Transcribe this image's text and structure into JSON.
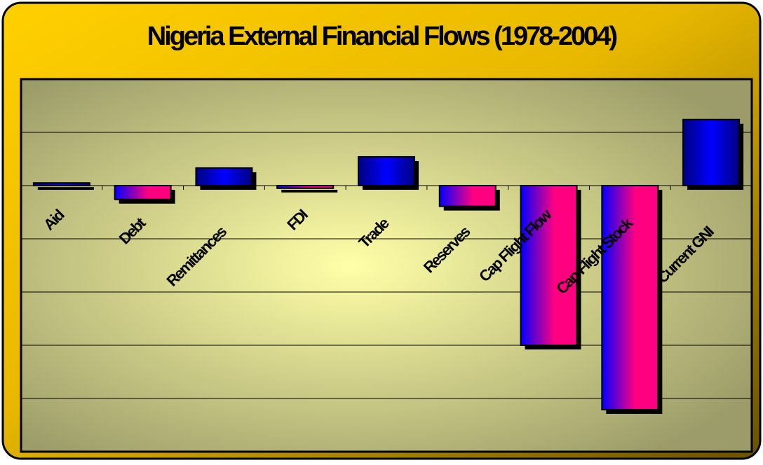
{
  "chart_data": {
    "type": "bar",
    "title": "Nigeria External Financial Flows (1978-2004)",
    "categories": [
      "Aid",
      "Debt",
      "Remittances",
      "FDI",
      "Trade",
      "Reserves",
      "Cap Flight Flow",
      "Cap Flight Stock",
      "Current GNI"
    ],
    "values": [
      0.05,
      -0.26,
      0.33,
      -0.05,
      0.54,
      -0.39,
      -3.0,
      -4.21,
      1.24
    ],
    "colors": [
      "#0000ff",
      "#ff0080"
    ],
    "ylim": [
      -5,
      2
    ],
    "yticks": [
      -4,
      -3,
      -2,
      -1,
      0,
      1
    ],
    "grid": true
  }
}
